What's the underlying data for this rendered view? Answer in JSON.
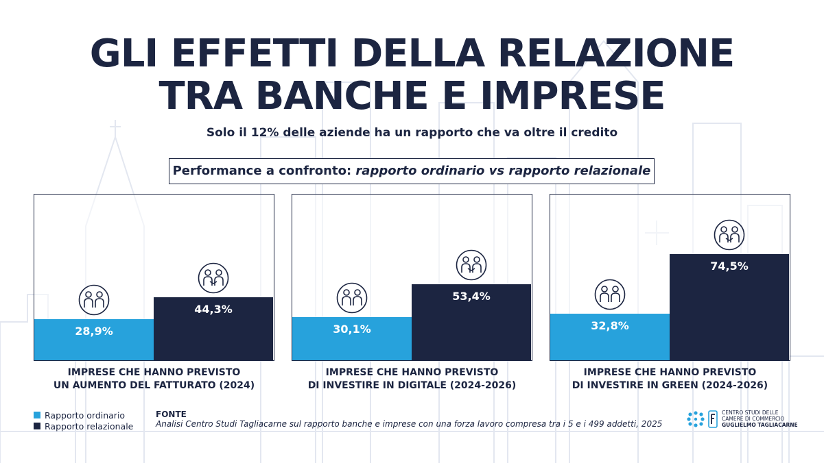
{
  "header": {
    "title_line1": "GLI EFFETTI DELLA RELAZIONE",
    "title_line2": "TRA BANCHE E IMPRESE",
    "subtitle": "Solo il 12% delle aziende ha un rapporto che va oltre il credito"
  },
  "comparison": {
    "prefix": "Performance a confronto: ",
    "italic": "rapporto ordinario vs rapporto relazionale"
  },
  "chart_data": [
    {
      "type": "bar",
      "categories": [
        "Rapporto ordinario",
        "Rapporto relazionale"
      ],
      "values": [
        28.9,
        44.3
      ],
      "value_labels": [
        "28,9%",
        "44,3%"
      ],
      "title_lines": [
        "IMPRESE CHE HANNO PREVISTO",
        "UN AUMENTO DEL FATTURATO (2024)"
      ],
      "ylim": [
        0,
        100
      ]
    },
    {
      "type": "bar",
      "categories": [
        "Rapporto ordinario",
        "Rapporto relazionale"
      ],
      "values": [
        30.1,
        53.4
      ],
      "value_labels": [
        "30,1%",
        "53,4%"
      ],
      "title_lines": [
        "IMPRESE CHE HANNO PREVISTO",
        "DI INVESTIRE IN DIGITALE (2024-2026)"
      ],
      "ylim": [
        0,
        100
      ]
    },
    {
      "type": "bar",
      "categories": [
        "Rapporto ordinario",
        "Rapporto relazionale"
      ],
      "values": [
        32.8,
        74.5
      ],
      "value_labels": [
        "32,8%",
        "74,5%"
      ],
      "title_lines": [
        "IMPRESE CHE HANNO PREVISTO",
        "DI INVESTIRE IN GREEN (2024-2026)"
      ],
      "ylim": [
        0,
        100
      ]
    }
  ],
  "legend": {
    "items": [
      {
        "label": "Rapporto ordinario",
        "color": "#27a2dc"
      },
      {
        "label": "Rapporto relazionale",
        "color": "#1c2541"
      }
    ]
  },
  "fonte": {
    "title": "FONTE",
    "text": "Analisi Centro Studi Tagliacarne sul rapporto banche e imprese con una forza lavoro compresa tra i 5 e i 499 addetti, 2025"
  },
  "logo": {
    "line1": "CENTRO STUDI DELLE",
    "line2": "CAMERE DI COMMERCIO",
    "line3": "GUGLIELMO TAGLIACARNE"
  },
  "colors": {
    "navy": "#1c2541",
    "blue": "#27a2dc",
    "skyline": "#e6e9f1"
  },
  "icons": [
    "two-people-icon",
    "handshake-icon",
    "logo-mark-icon"
  ]
}
